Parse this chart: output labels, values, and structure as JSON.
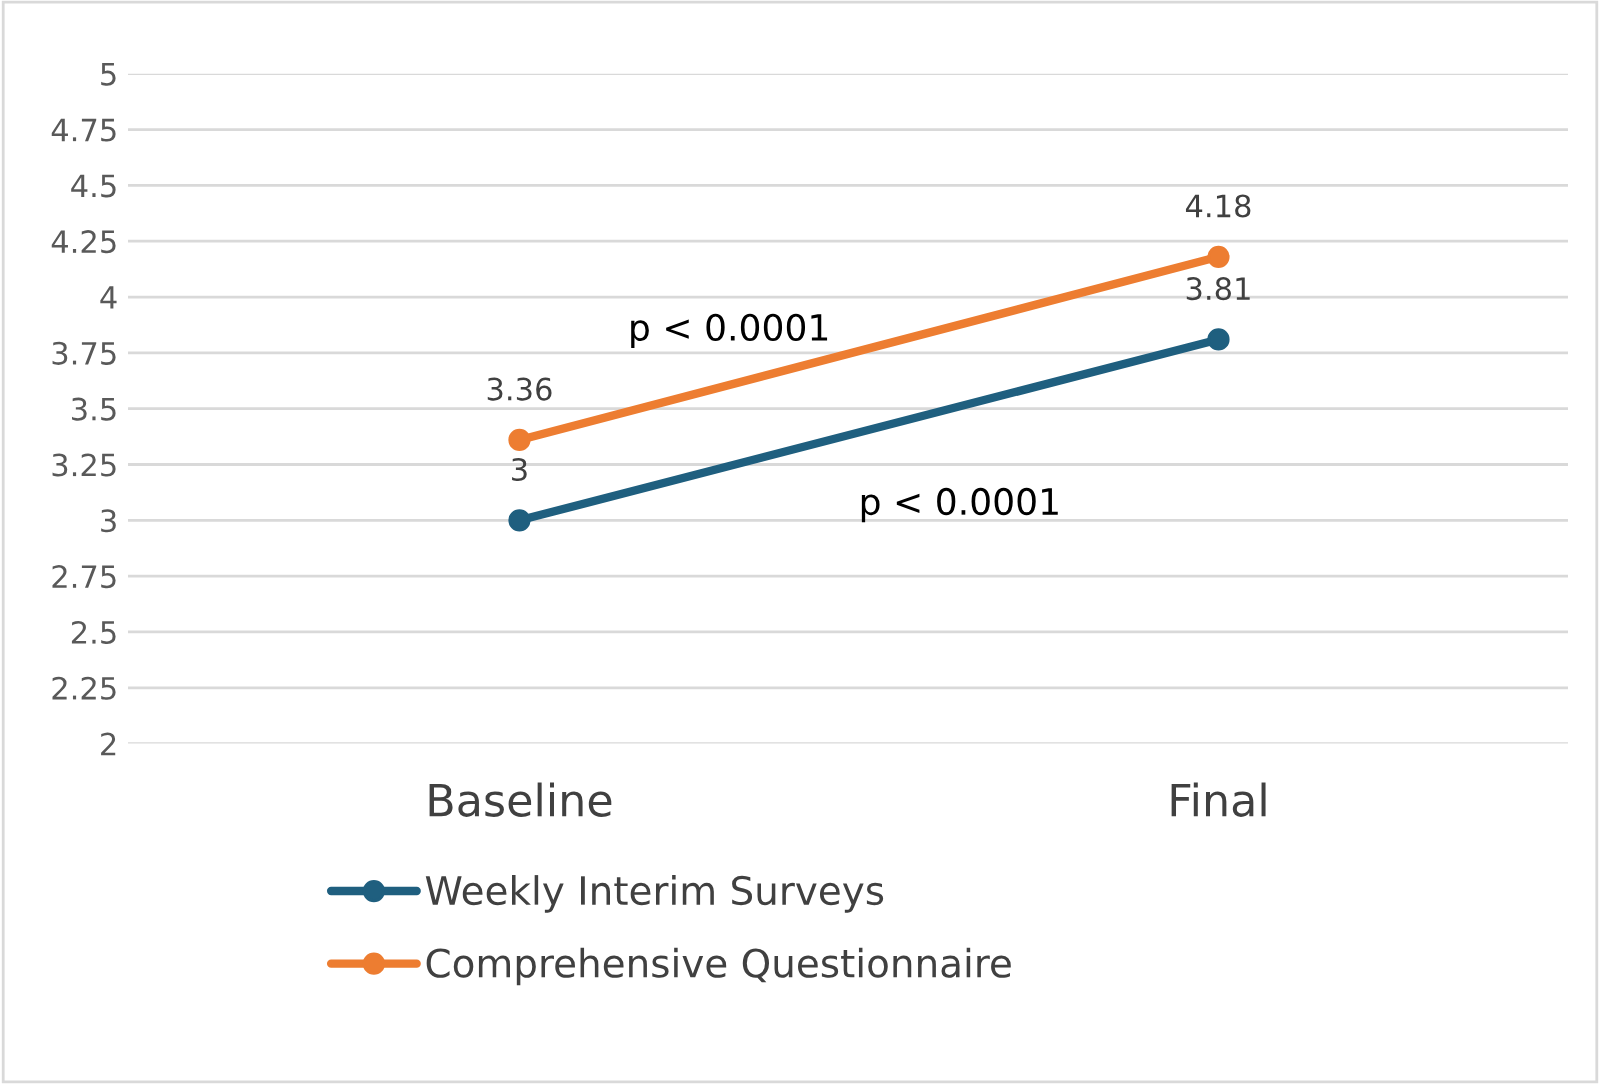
{
  "chart_data": {
    "type": "line",
    "categories": [
      "Baseline",
      "Final"
    ],
    "series": [
      {
        "name": "Weekly Interim Surveys",
        "color": "#1f5f7f",
        "values": [
          3,
          3.81
        ]
      },
      {
        "name": "Comprehensive Questionnaire",
        "color": "#ed7d31",
        "values": [
          3.36,
          4.18
        ]
      }
    ],
    "ylim": [
      2,
      5
    ],
    "yticks": [
      2,
      {
        "value": 2.25,
        "label": "2.25"
      },
      {
        "value": 2.5,
        "label": "2.5"
      },
      {
        "value": 2.75,
        "label": "2.75"
      },
      3,
      {
        "value": 3.25,
        "label": "3.25"
      },
      {
        "value": 3.5,
        "label": "3.5"
      },
      {
        "value": 3.75,
        "label": "3.75"
      },
      4,
      {
        "value": 4.25,
        "label": "4.25"
      },
      {
        "value": 4.5,
        "label": "4.5"
      },
      {
        "value": 4.75,
        "label": "4.75"
      },
      5
    ],
    "annotations": [
      "p < 0.0001",
      "p < 0.0001"
    ],
    "data_labels": true,
    "grid": "y",
    "legend": "bottom",
    "marker": "circle",
    "line_style": "solid"
  }
}
